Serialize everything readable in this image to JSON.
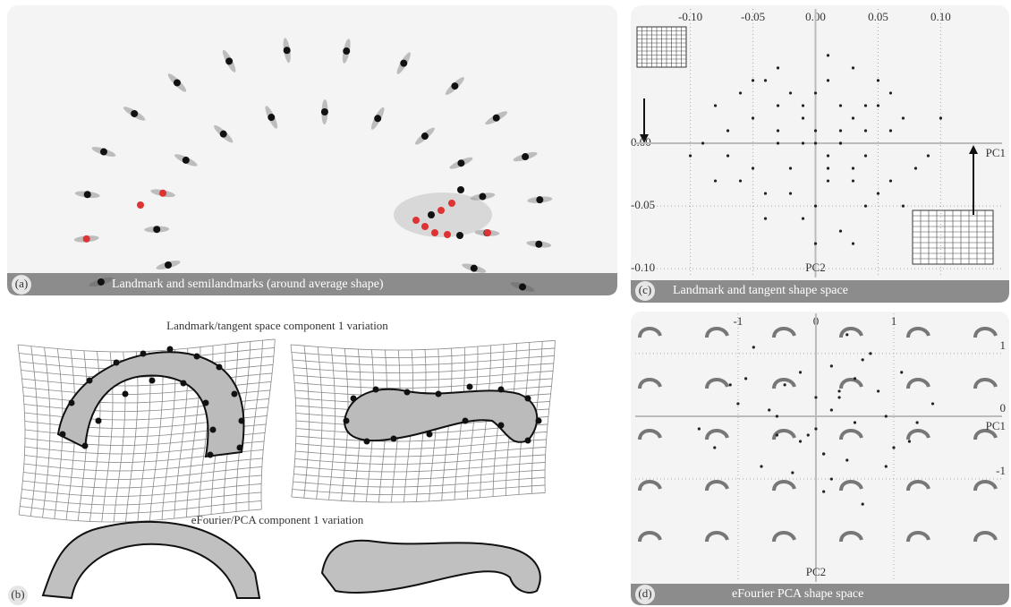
{
  "panels": {
    "a": {
      "letter": "(a)",
      "caption": "Landmark and semilandmarks (around average shape)"
    },
    "b": {
      "letter": "(b)",
      "title_top": "Landmark/tangent space component 1 variation",
      "title_bottom": "eFourier/PCA component 1 variation"
    },
    "c": {
      "letter": "(c)",
      "caption": "Landmark and tangent shape space",
      "type": "scatter",
      "x_label": "PC2",
      "y_label": "PC1",
      "xlim": [
        -0.144,
        0.149
      ],
      "ylim": [
        -0.107,
        0.107
      ],
      "xticks": [
        {
          "value": -0.1,
          "label": "-0.10"
        },
        {
          "value": -0.05,
          "label": "-0.05"
        },
        {
          "value": 0,
          "label": "0.00"
        },
        {
          "value": 0.05,
          "label": "0.05"
        },
        {
          "value": 0.1,
          "label": "0.10"
        }
      ],
      "yticks": [
        {
          "value": 0,
          "label": "0.00"
        },
        {
          "value": -0.05,
          "label": "-0.05"
        },
        {
          "value": -0.1,
          "label": "-0.10"
        }
      ],
      "color": "#222222",
      "x": [
        -0.03,
        0.01,
        0.02,
        -0.01,
        0.04,
        -0.05,
        0.0,
        0.03,
        -0.02,
        0.06,
        -0.07,
        0.01,
        0.05,
        -0.04,
        0.02,
        -0.01,
        0.08,
        -0.08,
        0.0,
        0.03,
        -0.03,
        0.04,
        -0.06,
        0.02,
        0.01,
        -0.02,
        0.07,
        -0.09,
        0.05,
        -0.01,
        0.0,
        0.03,
        -0.04,
        0.09,
        -0.05,
        0.02,
        -0.03,
        0.06,
        0.01,
        -0.06,
        0.04,
        -0.02,
        0.1,
        -0.1,
        0.0,
        0.05,
        -0.07,
        0.03,
        -0.01,
        0.02,
        0.06,
        -0.04,
        0.01,
        -0.03,
        0.07,
        -0.08,
        0.04,
        0.0,
        -0.05,
        0.03
      ],
      "values": [
        0.01,
        -0.02,
        0.03,
        0.0,
        -0.01,
        0.02,
        0.04,
        -0.03,
        -0.02,
        0.01,
        -0.01,
        0.05,
        0.03,
        -0.04,
        0.0,
        0.02,
        -0.02,
        0.03,
        -0.05,
        0.06,
        0.0,
        -0.05,
        -0.03,
        0.01,
        -0.01,
        0.04,
        0.02,
        0.0,
        -0.04,
        -0.06,
        0.01,
        0.02,
        0.05,
        -0.01,
        -0.02,
        -0.07,
        0.03,
        -0.03,
        0.07,
        0.04,
        0.01,
        -0.04,
        0.02,
        -0.01,
        -0.08,
        0.05,
        0.01,
        -0.02,
        0.03,
        0.0,
        0.04,
        -0.06,
        -0.03,
        0.06,
        -0.05,
        -0.03,
        0.03,
        0.0,
        0.05,
        -0.08
      ]
    },
    "d": {
      "letter": "(d)",
      "caption": "eFourier PCA shape space",
      "type": "scatter",
      "x_label": "PC2",
      "y_label": "PC1",
      "xlim": [
        -2.32,
        2.39
      ],
      "ylim": [
        -2.64,
        1.64
      ],
      "xticks": [
        -1,
        0,
        1
      ],
      "yticks": [
        1,
        0,
        -1
      ],
      "color": "#222222",
      "x": [
        0.2,
        -0.5,
        0.8,
        0.1,
        -1.0,
        0.5,
        -0.2,
        1.2,
        -0.7,
        0.3,
        0.0,
        0.6,
        -1.3,
        0.9,
        -0.4,
        0.2,
        1.5,
        -0.9,
        0.4,
        -0.1,
        0.7,
        -0.6,
        0.1,
        1.0,
        -1.5,
        0.3,
        -0.3,
        0.5,
        1.3,
        -0.8,
        0.0,
        0.9,
        -0.2,
        0.4,
        -1.1,
        0.6,
        0.2,
        -0.5,
        1.1,
        0.1
      ],
      "values": [
        0.1,
        -0.3,
        0.4,
        -0.6,
        0.2,
        -0.1,
        0.7,
        -0.4,
        -0.8,
        0.3,
        -0.2,
        0.9,
        -0.5,
        0.0,
        0.5,
        -1.0,
        0.2,
        0.6,
        -0.7,
        -0.3,
        1.0,
        0.1,
        -1.2,
        -0.5,
        -0.2,
        0.4,
        -0.9,
        0.6,
        -0.1,
        1.1,
        0.3,
        -0.8,
        -0.4,
        1.3,
        0.5,
        -1.4,
        0.8,
        0.0,
        0.7,
        -0.6
      ]
    }
  }
}
